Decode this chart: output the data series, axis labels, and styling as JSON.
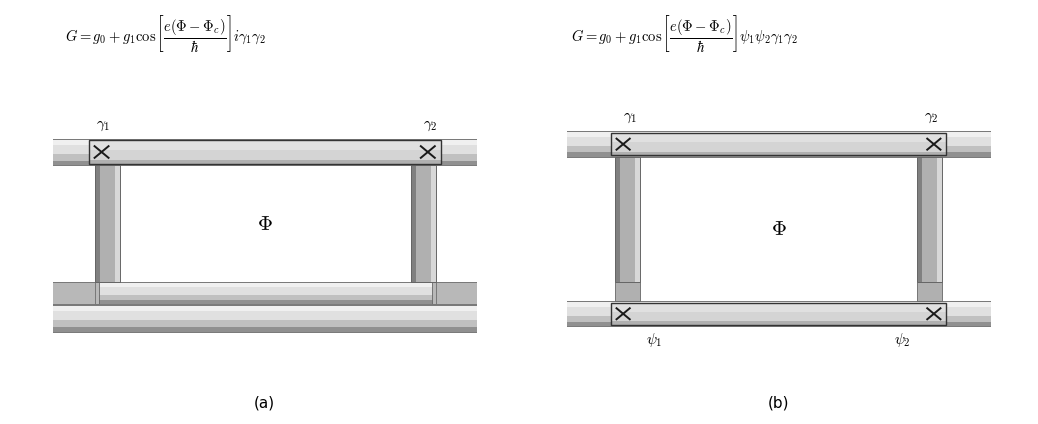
{
  "bg_color": "#ffffff",
  "panel_a": {
    "formula": "$G = g_0 + g_1 \\cos\\left[\\dfrac{e(\\Phi - \\Phi_c)}{\\hbar}\\right] i\\gamma_1\\gamma_2$",
    "label": "(a)",
    "gamma1_label": "$\\gamma_1$",
    "gamma2_label": "$\\gamma_2$",
    "phi_label": "$\\Phi$"
  },
  "panel_b": {
    "formula": "$G = g_0 + g_1 \\cos\\left[\\dfrac{e(\\Phi - \\Phi_c)}{\\hbar}\\right] \\psi_1\\psi_2\\gamma_1\\gamma_2$",
    "label": "(b)",
    "gamma1_label": "$\\gamma_1$",
    "gamma2_label": "$\\gamma_2$",
    "psi1_label": "$\\psi_1$",
    "psi2_label": "$\\psi_2$",
    "phi_label": "$\\Phi$"
  },
  "colors": {
    "wire_dark": "#909090",
    "wire_mid": "#c0c0c0",
    "wire_light": "#e0e0e0",
    "wire_very_light": "#f0f0f0",
    "pillar_dark": "#808080",
    "pillar_mid": "#b0b0b0",
    "pillar_light": "#d8d8d8",
    "junction_bg": "#c8c8c8",
    "junction_border": "#333333",
    "cross_color": "#1a1a1a",
    "connector_dark": "#888888",
    "connector_mid": "#b8b8b8"
  }
}
